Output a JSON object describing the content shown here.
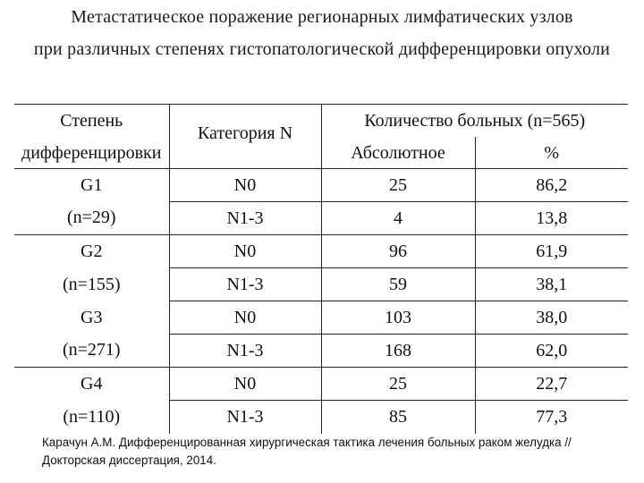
{
  "title": {
    "line1": "Метастатическое поражение регионарных лимфатических узлов",
    "line2": "при различных степенях гистопатологической  дифференцировки опухоли"
  },
  "table": {
    "headers": {
      "grade": [
        "Степень",
        "дифференцировки"
      ],
      "category": "Категория N",
      "count_group": "Количество больных (n=565)",
      "absolute": "Абсолютное",
      "percent": "%"
    },
    "groups": [
      {
        "grade_label": "G1",
        "grade_n": "(n=29)",
        "rows": [
          {
            "category": "N0",
            "absolute": "25",
            "percent": "86,2"
          },
          {
            "category": "N1-3",
            "absolute": "4",
            "percent": "13,8"
          }
        ]
      },
      {
        "grade_label": "G2",
        "grade_n": "(n=155)",
        "rows": [
          {
            "category": "N0",
            "absolute": "96",
            "percent": "61,9"
          },
          {
            "category": "N1-3",
            "absolute": "59",
            "percent": "38,1"
          }
        ]
      },
      {
        "grade_label": "G3",
        "grade_n": "(n=271)",
        "rows": [
          {
            "category": "N0",
            "absolute": "103",
            "percent": "38,0"
          },
          {
            "category": "N1-3",
            "absolute": "168",
            "percent": "62,0"
          }
        ]
      },
      {
        "grade_label": "G4",
        "grade_n": "(n=110)",
        "rows": [
          {
            "category": "N0",
            "absolute": "25",
            "percent": "22,7"
          },
          {
            "category": "N1-3",
            "absolute": "85",
            "percent": "77,3"
          }
        ]
      }
    ]
  },
  "citation": {
    "line1": "Карачун А.М. Дифференцированная хирургическая тактика лечения больных раком желудка //",
    "line2": "Докторская диссертация, 2014."
  }
}
